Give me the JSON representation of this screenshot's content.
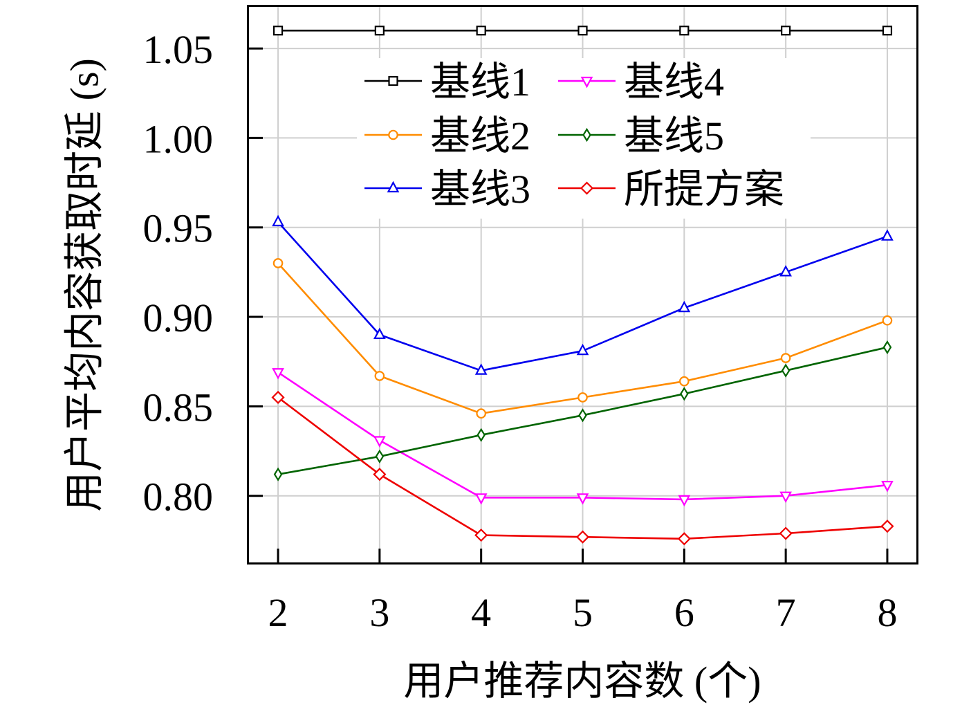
{
  "chart_data": {
    "type": "line",
    "x": [
      2,
      3,
      4,
      5,
      6,
      7,
      8
    ],
    "xlabel": "用户推荐内容数 (个)",
    "ylabel": "用户平均内容获取时延 (s)",
    "xlim": [
      1.7,
      8.3
    ],
    "ylim": [
      0.762,
      1.074
    ],
    "xticks": [
      2,
      3,
      4,
      5,
      6,
      7,
      8
    ],
    "xtick_labels": [
      "2",
      "3",
      "4",
      "5",
      "6",
      "7",
      "8"
    ],
    "yticks": [
      0.8,
      0.85,
      0.9,
      0.95,
      1.0,
      1.05
    ],
    "ytick_labels": [
      "0.80",
      "0.85",
      "0.90",
      "0.95",
      "1.00",
      "1.05"
    ],
    "grid": true,
    "legend": "top-center",
    "series": [
      {
        "name": "基线1",
        "color": "#000000",
        "marker": "square",
        "values": [
          1.06,
          1.06,
          1.06,
          1.06,
          1.06,
          1.06,
          1.06
        ]
      },
      {
        "name": "基线2",
        "color": "#FF8C00",
        "marker": "circle",
        "values": [
          0.93,
          0.867,
          0.846,
          0.855,
          0.864,
          0.877,
          0.898
        ]
      },
      {
        "name": "基线3",
        "color": "#0000EE",
        "marker": "triangle-up",
        "values": [
          0.953,
          0.89,
          0.87,
          0.881,
          0.905,
          0.925,
          0.945
        ]
      },
      {
        "name": "基线4",
        "color": "#FF00FF",
        "marker": "triangle-down",
        "values": [
          0.869,
          0.831,
          0.799,
          0.799,
          0.798,
          0.8,
          0.806
        ]
      },
      {
        "name": "基线5",
        "color": "#006400",
        "marker": "thin-diamond",
        "values": [
          0.812,
          0.822,
          0.834,
          0.845,
          0.857,
          0.87,
          0.883
        ]
      },
      {
        "name": "所提方案",
        "color": "#EE0000",
        "marker": "diamond",
        "values": [
          0.855,
          0.812,
          0.778,
          0.777,
          0.776,
          0.779,
          0.783
        ]
      }
    ]
  }
}
